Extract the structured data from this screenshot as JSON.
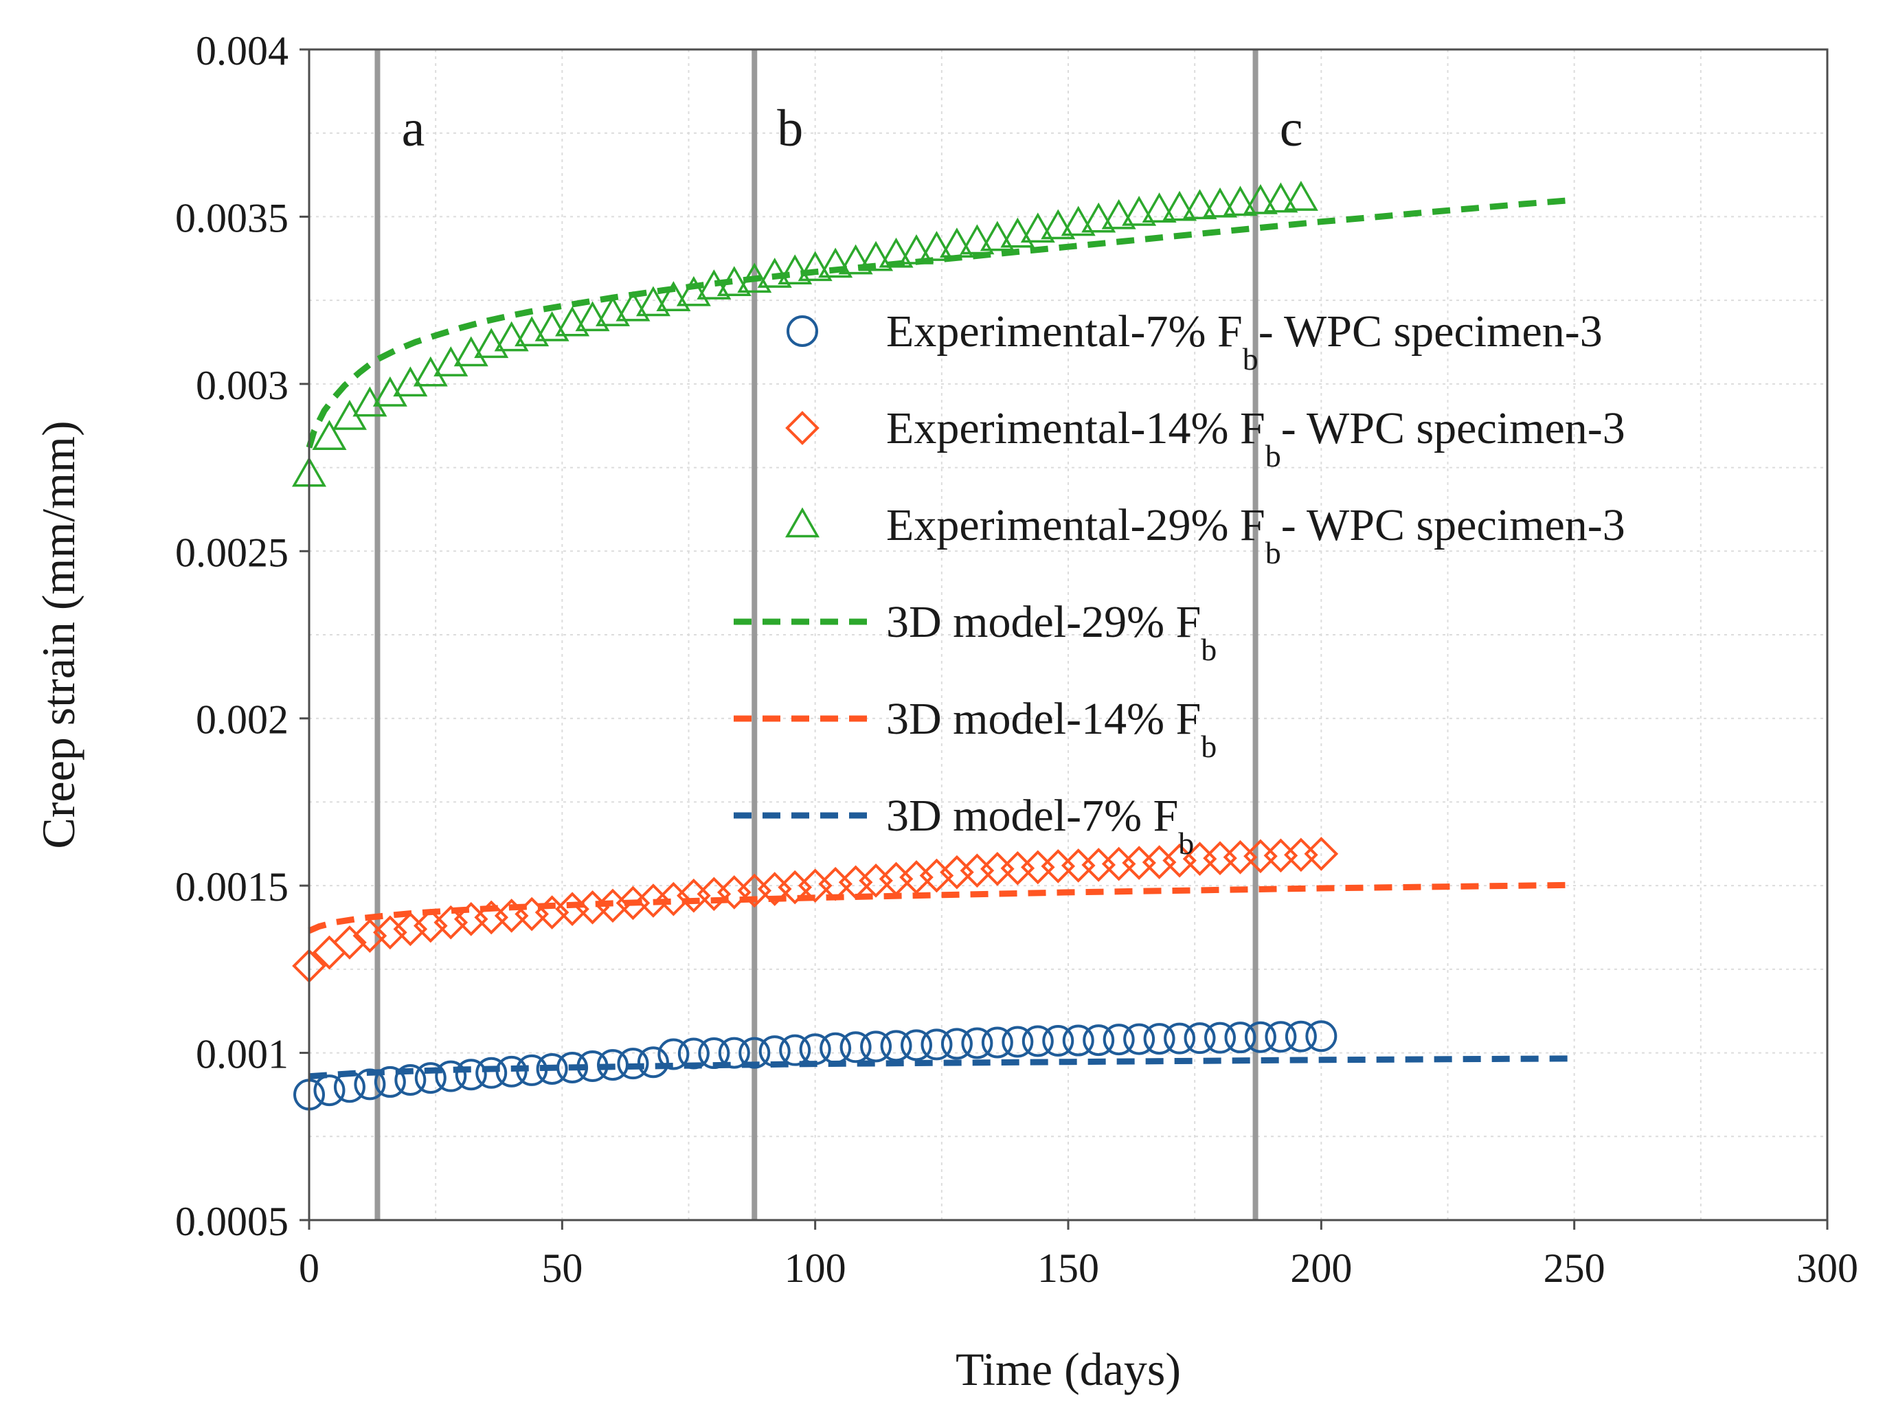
{
  "chart_data": {
    "type": "scatter",
    "title": "",
    "xlabel": "Time (days)",
    "ylabel": "Creep strain (mm/mm)",
    "xlim": [
      0,
      300
    ],
    "ylim": [
      0.0005,
      0.004
    ],
    "xticks": [
      0,
      50,
      100,
      150,
      200,
      250,
      300
    ],
    "xtick_labels": [
      "0",
      "50",
      "100",
      "150",
      "200",
      "250",
      "300"
    ],
    "yticks": [
      0.0005,
      0.001,
      0.0015,
      0.002,
      0.0025,
      0.003,
      0.0035,
      0.004
    ],
    "ytick_labels": [
      "0.0005",
      "0.001",
      "0.0015",
      "0.002",
      "0.0025",
      "0.003",
      "0.0035",
      "0.004"
    ],
    "grid": true,
    "legend_position": "center-right",
    "colors": {
      "blue": "#1f5c99",
      "orange": "#ff5522",
      "green": "#2ca82c",
      "marker_line": "#999999"
    },
    "vertical_markers": [
      {
        "label": "a",
        "x": 13.5
      },
      {
        "label": "b",
        "x": 88
      },
      {
        "label": "c",
        "x": 187
      }
    ],
    "series": [
      {
        "name": "Experimental-7% F",
        "subscript": "b",
        "suffix": "- WPC specimen-3",
        "kind": "experimental",
        "marker": "circle",
        "color": "#1f5c99",
        "x": [
          0,
          4,
          8,
          12,
          16,
          20,
          24,
          28,
          32,
          36,
          40,
          44,
          48,
          52,
          56,
          60,
          64,
          68,
          72,
          76,
          80,
          84,
          88,
          92,
          96,
          100,
          104,
          108,
          112,
          116,
          120,
          124,
          128,
          132,
          136,
          140,
          144,
          148,
          152,
          156,
          160,
          164,
          168,
          172,
          176,
          180,
          184,
          188,
          192,
          196,
          200
        ],
        "y": [
          0.000875,
          0.000888,
          0.000898,
          0.000906,
          0.000913,
          0.000919,
          0.000925,
          0.00093,
          0.000935,
          0.00094,
          0.000944,
          0.000948,
          0.000952,
          0.000956,
          0.00096,
          0.000964,
          0.000968,
          0.000972,
          0.000996,
          0.000998,
          0.000999,
          0.001,
          0.001,
          0.001005,
          0.001008,
          0.001011,
          0.001014,
          0.001017,
          0.001019,
          0.001021,
          0.001023,
          0.001025,
          0.001027,
          0.001029,
          0.001031,
          0.001033,
          0.001035,
          0.001036,
          0.001037,
          0.001038,
          0.00104,
          0.001041,
          0.001042,
          0.001043,
          0.001044,
          0.001045,
          0.001046,
          0.001047,
          0.001048,
          0.001049,
          0.00105
        ]
      },
      {
        "name": "Experimental-14% F",
        "subscript": "b",
        "suffix": "- WPC specimen-3",
        "kind": "experimental",
        "marker": "diamond",
        "color": "#ff5522",
        "x": [
          0,
          4,
          8,
          12,
          16,
          20,
          24,
          28,
          32,
          36,
          40,
          44,
          48,
          52,
          56,
          60,
          64,
          68,
          72,
          76,
          80,
          84,
          88,
          92,
          96,
          100,
          104,
          108,
          112,
          116,
          120,
          124,
          128,
          132,
          136,
          140,
          144,
          148,
          152,
          156,
          160,
          164,
          168,
          172,
          176,
          180,
          184,
          188,
          192,
          196,
          200
        ],
        "y": [
          0.00126,
          0.0013,
          0.00133,
          0.00135,
          0.00136,
          0.00137,
          0.00138,
          0.00139,
          0.0014,
          0.001405,
          0.00141,
          0.001415,
          0.00142,
          0.00143,
          0.001435,
          0.00144,
          0.001448,
          0.001455,
          0.00146,
          0.00147,
          0.001475,
          0.00148,
          0.001485,
          0.00149,
          0.001495,
          0.0015,
          0.001505,
          0.00151,
          0.001515,
          0.00152,
          0.001525,
          0.00153,
          0.00154,
          0.001545,
          0.00155,
          0.001552,
          0.001555,
          0.001558,
          0.00156,
          0.001562,
          0.001565,
          0.001568,
          0.00157,
          0.001575,
          0.00158,
          0.001582,
          0.001585,
          0.001588,
          0.00159,
          0.001592,
          0.001595
        ]
      },
      {
        "name": "Experimental-29% F",
        "subscript": "b",
        "suffix": "- WPC specimen-3",
        "kind": "experimental",
        "marker": "triangle",
        "color": "#2ca82c",
        "x": [
          0,
          4,
          8,
          12,
          16,
          20,
          24,
          28,
          32,
          36,
          40,
          44,
          48,
          52,
          56,
          60,
          64,
          68,
          72,
          76,
          80,
          84,
          88,
          92,
          96,
          100,
          104,
          108,
          112,
          116,
          120,
          124,
          128,
          132,
          136,
          140,
          144,
          148,
          152,
          156,
          160,
          164,
          168,
          172,
          176,
          180,
          184,
          188,
          192,
          196
        ],
        "y": [
          0.00273,
          0.00284,
          0.0029,
          0.00294,
          0.00297,
          0.003,
          0.00303,
          0.00306,
          0.00309,
          0.003115,
          0.003135,
          0.00315,
          0.003165,
          0.00318,
          0.003195,
          0.00321,
          0.003225,
          0.00324,
          0.003255,
          0.00327,
          0.00329,
          0.0033,
          0.00331,
          0.003325,
          0.003335,
          0.003345,
          0.003355,
          0.003365,
          0.003375,
          0.003385,
          0.003395,
          0.003405,
          0.003415,
          0.003425,
          0.003435,
          0.003445,
          0.00346,
          0.00347,
          0.00348,
          0.00349,
          0.0035,
          0.00351,
          0.00352,
          0.003525,
          0.00353,
          0.003535,
          0.00354,
          0.003545,
          0.00355,
          0.003555
        ]
      },
      {
        "name": "3D model-29% F",
        "subscript": "b",
        "suffix": "",
        "kind": "model",
        "marker": "dash",
        "color": "#2ca82c",
        "x": [
          0,
          1,
          2,
          3,
          5,
          7,
          10,
          13,
          17,
          21,
          25,
          30,
          35,
          40,
          45,
          50,
          60,
          70,
          80,
          90,
          100,
          110,
          120,
          130,
          140,
          150,
          160,
          170,
          180,
          190,
          200,
          210,
          220,
          230,
          240,
          250
        ],
        "y": [
          0.00281,
          0.00286,
          0.00289,
          0.00292,
          0.00296,
          0.002995,
          0.003035,
          0.00307,
          0.0031,
          0.003125,
          0.003145,
          0.003168,
          0.003188,
          0.003205,
          0.00322,
          0.003233,
          0.003258,
          0.00328,
          0.0033,
          0.003318,
          0.003335,
          0.00335,
          0.003365,
          0.00338,
          0.003395,
          0.00341,
          0.003425,
          0.00344,
          0.003455,
          0.00347,
          0.003485,
          0.003498,
          0.003512,
          0.003525,
          0.003538,
          0.00355
        ]
      },
      {
        "name": "3D model-14% F",
        "subscript": "b",
        "suffix": "",
        "kind": "model",
        "marker": "dash",
        "color": "#ff5522",
        "x": [
          0,
          2,
          5,
          10,
          15,
          20,
          30,
          40,
          50,
          60,
          80,
          100,
          125,
          150,
          175,
          200,
          225,
          250
        ],
        "y": [
          0.001365,
          0.001378,
          0.00139,
          0.001402,
          0.00141,
          0.001417,
          0.001427,
          0.001435,
          0.001441,
          0.001447,
          0.001456,
          0.001464,
          0.001472,
          0.00148,
          0.001486,
          0.001492,
          0.001497,
          0.001502
        ]
      },
      {
        "name": "3D model-7% F",
        "subscript": "b",
        "suffix": "",
        "kind": "model",
        "marker": "dash",
        "color": "#1f5c99",
        "x": [
          0,
          5,
          10,
          20,
          30,
          50,
          75,
          100,
          125,
          150,
          175,
          200,
          225,
          250
        ],
        "y": [
          0.00093,
          0.000935,
          0.00094,
          0.000945,
          0.00095,
          0.000956,
          0.000962,
          0.000967,
          0.00097,
          0.000973,
          0.000976,
          0.000979,
          0.000981,
          0.000983
        ]
      }
    ]
  }
}
